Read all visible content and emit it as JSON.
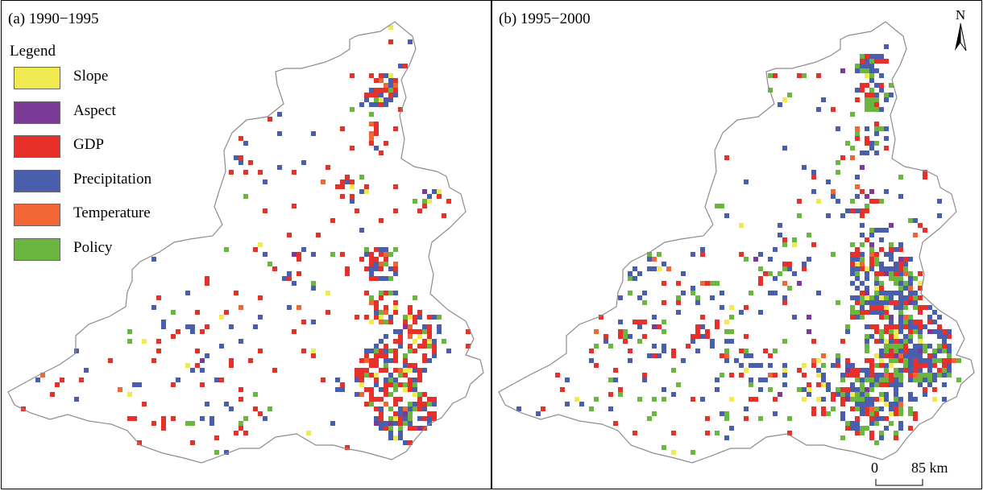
{
  "panels": [
    {
      "title": "(a) 1990−1995"
    },
    {
      "title": "(b) 1995−2000"
    }
  ],
  "legend": {
    "title": "Legend",
    "items": [
      {
        "label": "Slope",
        "color": "#f0ea50"
      },
      {
        "label": "Aspect",
        "color": "#7a3a96"
      },
      {
        "label": "GDP",
        "color": "#e8302a"
      },
      {
        "label": "Precipitation",
        "color": "#4a5eae"
      },
      {
        "label": "Temperature",
        "color": "#f26534"
      },
      {
        "label": "Policy",
        "color": "#6ab640"
      }
    ]
  },
  "north_arrow": {
    "label": "N",
    "icon": "north-arrow-icon"
  },
  "scale_bar": {
    "zero": "0",
    "end": "85 km"
  },
  "map_colors": {
    "boundary": "#8c8c8c"
  }
}
